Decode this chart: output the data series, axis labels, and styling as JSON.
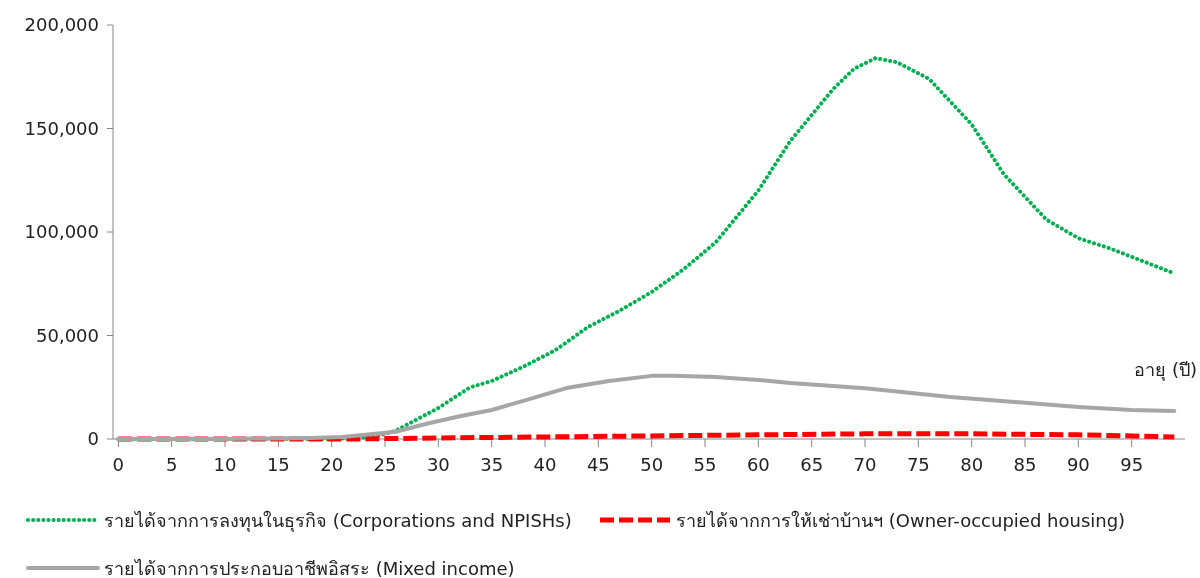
{
  "chart_data": {
    "type": "line",
    "xlabel": "อายุ (ปี)",
    "xlim": [
      -0.5,
      100
    ],
    "xticks": [
      0,
      5,
      10,
      15,
      20,
      25,
      30,
      35,
      40,
      45,
      50,
      55,
      60,
      65,
      70,
      75,
      80,
      85,
      90,
      95
    ],
    "ylim": [
      0,
      200000
    ],
    "yticks": [
      {
        "value": 0,
        "label": "0"
      },
      {
        "value": 50000,
        "label": "50,000"
      },
      {
        "value": 100000,
        "label": "100,000"
      },
      {
        "value": 150000,
        "label": "150,000"
      },
      {
        "value": 200000,
        "label": "200,000"
      }
    ],
    "grid": false,
    "legend": "bottom",
    "marker": "none",
    "series": [
      {
        "name": "รายได้จากการลงทุนในธุรกิจ (Corporations and NPISHs)",
        "color": "#00b050",
        "line_style": "dotted",
        "x": [
          0,
          10,
          20,
          24,
          26,
          30,
          33,
          35,
          38,
          41,
          44,
          47,
          50,
          53,
          56,
          60,
          63,
          67,
          69,
          71,
          73,
          76,
          80,
          83,
          87,
          90,
          93,
          96,
          99
        ],
        "values": [
          0,
          0,
          0,
          1000,
          4000,
          15000,
          25000,
          28000,
          35000,
          43000,
          54000,
          62000,
          71000,
          82000,
          95000,
          120000,
          144000,
          169000,
          179000,
          184000,
          182000,
          174000,
          152000,
          128000,
          106000,
          97000,
          92000,
          86000,
          80000
        ]
      },
      {
        "name": "รายได้จากการให้เช่าบ้านฯ (Owner-occupied housing)",
        "color": "#ff0000",
        "line_style": "dashed",
        "x": [
          0,
          10,
          20,
          22,
          30,
          40,
          50,
          60,
          70,
          80,
          90,
          99
        ],
        "values": [
          0,
          0,
          0,
          0,
          500,
          1000,
          1500,
          2000,
          2500,
          2500,
          2000,
          1000
        ]
      },
      {
        "name": "รายได้จากการประกอบอาชีพอิสระ (Mixed income)",
        "color": "#a6a6a6",
        "line_style": "solid",
        "x": [
          0,
          10,
          18,
          21,
          26,
          29,
          32,
          35,
          39,
          42,
          46,
          50,
          52,
          56,
          60,
          63,
          70,
          78,
          85,
          90,
          95,
          99
        ],
        "values": [
          0,
          0,
          500,
          1000,
          3500,
          7500,
          11000,
          14000,
          20000,
          24600,
          28000,
          30500,
          30500,
          30000,
          28500,
          27000,
          24500,
          20300,
          17500,
          15500,
          14000,
          13500
        ]
      }
    ]
  }
}
